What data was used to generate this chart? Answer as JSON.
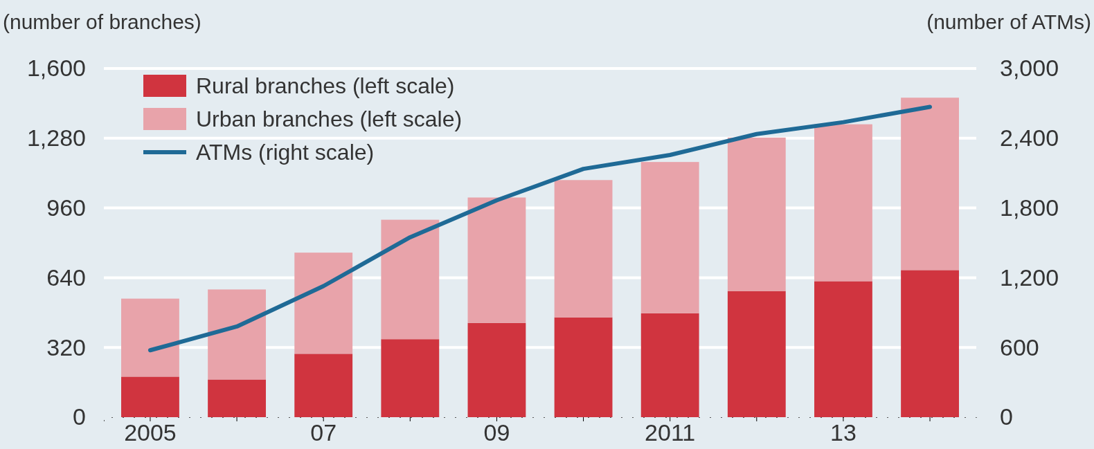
{
  "chart_data": {
    "type": "bar",
    "stacked": true,
    "ylabel": "(number of branches)",
    "y2label": "(number of ATMs)",
    "categories": [
      "2005",
      null,
      "07",
      null,
      "09",
      null,
      "2011",
      null,
      "13",
      null
    ],
    "series": [
      {
        "name": "Rural branches (left scale)",
        "color": "#d0343f",
        "values": [
          186,
          173,
          291,
          358,
          432,
          458,
          477,
          579,
          624,
          675
        ]
      },
      {
        "name": "Urban branches (left scale)",
        "color": "#e8a3aa",
        "values": [
          358,
          413,
          464,
          548,
          576,
          630,
          694,
          704,
          720,
          791
        ]
      },
      {
        "name": "ATMs (right scale)",
        "type": "line",
        "axis": "y2",
        "color": "#1f6a96",
        "values": [
          576,
          780,
          1128,
          1548,
          1866,
          2136,
          2256,
          2436,
          2538,
          2670
        ]
      }
    ],
    "ylim": [
      0,
      1600
    ],
    "yticks": [
      0,
      320,
      640,
      960,
      {
        "value": 1280,
        "label": "1,280"
      },
      {
        "value": 1600,
        "label": "1,600"
      }
    ],
    "y2lim": [
      0,
      3000
    ],
    "y2ticks": [
      0,
      600,
      {
        "value": 1200,
        "label": "1,200"
      },
      {
        "value": 1800,
        "label": "1,800"
      },
      {
        "value": 2400,
        "label": "2,400"
      },
      {
        "value": 3000,
        "label": "3,000"
      }
    ],
    "grid": "y",
    "legend": "top left"
  }
}
